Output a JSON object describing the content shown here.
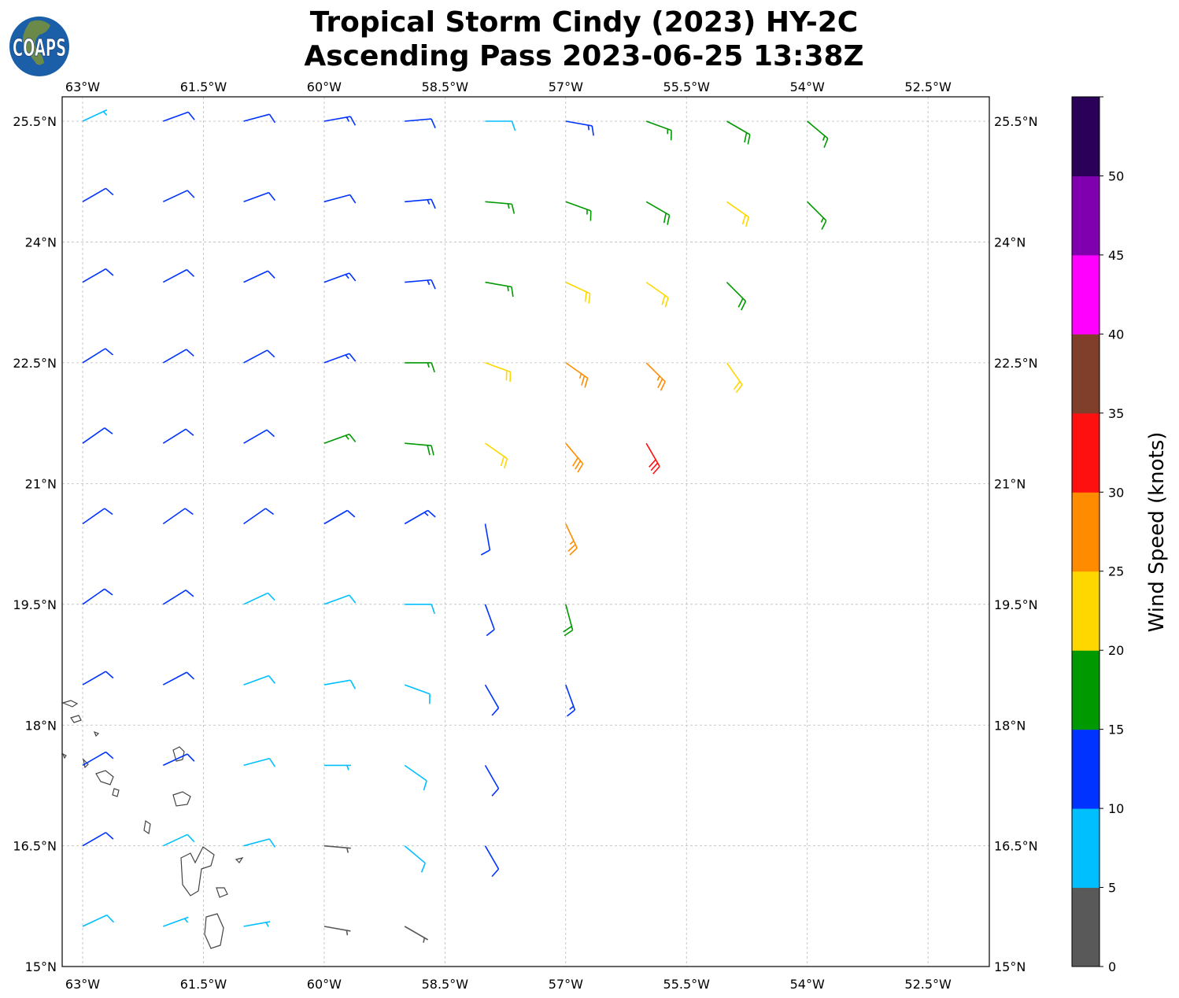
{
  "title_line1": "Tropical Storm Cindy (2023) HY-2C",
  "title_line2": "Ascending Pass 2023-06-25 13:38Z",
  "logo_text": "COAPS",
  "chart_data": {
    "type": "wind-barb-map",
    "lon_ticks": [
      {
        "v": -63,
        "label": "63°W"
      },
      {
        "v": -61.5,
        "label": "61.5°W"
      },
      {
        "v": -60,
        "label": "60°W"
      },
      {
        "v": -58.5,
        "label": "58.5°W"
      },
      {
        "v": -57,
        "label": "57°W"
      },
      {
        "v": -55.5,
        "label": "55.5°W"
      },
      {
        "v": -54,
        "label": "54°W"
      },
      {
        "v": -52.5,
        "label": "52.5°W"
      }
    ],
    "lat_ticks": [
      {
        "v": 25.5,
        "label": "25.5°N"
      },
      {
        "v": 24,
        "label": "24°N"
      },
      {
        "v": 22.5,
        "label": "22.5°N"
      },
      {
        "v": 21,
        "label": "21°N"
      },
      {
        "v": 19.5,
        "label": "19.5°N"
      },
      {
        "v": 18,
        "label": "18°N"
      },
      {
        "v": 16.5,
        "label": "16.5°N"
      },
      {
        "v": 15,
        "label": "15°N"
      }
    ],
    "extent": {
      "lon": [
        -63.25,
        -51.74
      ],
      "lat": [
        15,
        25.8
      ]
    },
    "grid": true,
    "colorbar": {
      "label": "Wind Speed (knots)",
      "ticks": [
        "0",
        "5",
        "10",
        "15",
        "20",
        "25",
        "30",
        "35",
        "40",
        "45",
        "50"
      ],
      "bins": [
        0,
        5,
        10,
        15,
        20,
        25,
        30,
        35,
        40,
        45,
        50,
        55
      ],
      "colors": [
        "#595959",
        "#00bfff",
        "#0033ff",
        "#009900",
        "#ffd700",
        "#ff8c00",
        "#ff1010",
        "#803f2a",
        "#ff00ff",
        "#8000b0",
        "#2b0059"
      ]
    },
    "barb_fields": [
      "lon",
      "lat",
      "speed_kt",
      "direction_from_deg"
    ],
    "barbs": [
      [
        -63,
        25.5,
        7,
        65
      ],
      [
        -62,
        25.5,
        11,
        70
      ],
      [
        -61,
        25.5,
        12,
        75
      ],
      [
        -60,
        25.5,
        14,
        80
      ],
      [
        -59,
        25.5,
        12,
        85
      ],
      [
        -58,
        25.5,
        8,
        90
      ],
      [
        -57,
        25.5,
        13,
        100
      ],
      [
        -56,
        25.5,
        17,
        110
      ],
      [
        -55,
        25.5,
        19,
        120
      ],
      [
        -54,
        25.5,
        15,
        130
      ],
      [
        -63,
        24.5,
        12,
        60
      ],
      [
        -62,
        24.5,
        11,
        65
      ],
      [
        -61,
        24.5,
        12,
        70
      ],
      [
        -60,
        24.5,
        12,
        75
      ],
      [
        -59,
        24.5,
        14,
        85
      ],
      [
        -58,
        24.5,
        15,
        95
      ],
      [
        -57,
        24.5,
        17,
        110
      ],
      [
        -56,
        24.5,
        18,
        120
      ],
      [
        -55,
        24.5,
        21,
        125
      ],
      [
        -54,
        24.5,
        16,
        135
      ],
      [
        -63,
        23.5,
        12,
        60
      ],
      [
        -62,
        23.5,
        12,
        62
      ],
      [
        -61,
        23.5,
        12,
        65
      ],
      [
        -60,
        23.5,
        13,
        70
      ],
      [
        -59,
        23.5,
        14,
        85
      ],
      [
        -58,
        23.5,
        17,
        100
      ],
      [
        -57,
        23.5,
        20,
        115
      ],
      [
        -56,
        23.5,
        22,
        125
      ],
      [
        -55,
        23.5,
        18,
        135
      ],
      [
        -63,
        22.5,
        12,
        58
      ],
      [
        -62,
        22.5,
        12,
        60
      ],
      [
        -61,
        22.5,
        12,
        62
      ],
      [
        -60,
        22.5,
        14,
        70
      ],
      [
        -59,
        22.5,
        17,
        90
      ],
      [
        -58,
        22.5,
        20,
        110
      ],
      [
        -57,
        22.5,
        26,
        125
      ],
      [
        -56,
        22.5,
        27,
        135
      ],
      [
        -55,
        22.5,
        22,
        145
      ],
      [
        -63,
        21.5,
        12,
        55
      ],
      [
        -62,
        21.5,
        12,
        58
      ],
      [
        -61,
        21.5,
        12,
        60
      ],
      [
        -60,
        21.5,
        17,
        70
      ],
      [
        -59,
        21.5,
        18,
        95
      ],
      [
        -58,
        21.5,
        22,
        125
      ],
      [
        -57,
        21.5,
        28,
        140
      ],
      [
        -56,
        21.5,
        30,
        150
      ],
      [
        -63,
        20.5,
        12,
        55
      ],
      [
        -62,
        20.5,
        12,
        55
      ],
      [
        -61,
        20.5,
        12,
        55
      ],
      [
        -60,
        20.5,
        12,
        60
      ],
      [
        -59,
        20.5,
        13,
        60
      ],
      [
        -58,
        20.5,
        12,
        170
      ],
      [
        -57,
        20.5,
        26,
        155
      ],
      [
        -63,
        19.5,
        12,
        55
      ],
      [
        -62,
        19.5,
        12,
        58
      ],
      [
        -61,
        19.5,
        8,
        65
      ],
      [
        -60,
        19.5,
        8,
        70
      ],
      [
        -59,
        19.5,
        8,
        90
      ],
      [
        -58,
        19.5,
        12,
        160
      ],
      [
        -57,
        19.5,
        18,
        165
      ],
      [
        -63,
        18.5,
        12,
        60
      ],
      [
        -62,
        18.5,
        12,
        62
      ],
      [
        -61,
        18.5,
        8,
        70
      ],
      [
        -60,
        18.5,
        8,
        80
      ],
      [
        -59,
        18.5,
        8,
        110
      ],
      [
        -58,
        18.5,
        12,
        150
      ],
      [
        -57,
        18.5,
        14,
        160
      ],
      [
        -63,
        17.5,
        12,
        60
      ],
      [
        -62,
        17.5,
        12,
        65
      ],
      [
        -61,
        17.5,
        8,
        75
      ],
      [
        -60,
        17.5,
        7,
        90
      ],
      [
        -59,
        17.5,
        8,
        125
      ],
      [
        -58,
        17.5,
        12,
        150
      ],
      [
        -63,
        16.5,
        12,
        60
      ],
      [
        -62,
        16.5,
        9,
        65
      ],
      [
        -61,
        16.5,
        8,
        75
      ],
      [
        -60,
        16.5,
        4,
        95
      ],
      [
        -59,
        16.5,
        8,
        130
      ],
      [
        -58,
        16.5,
        12,
        150
      ],
      [
        -63,
        15.5,
        8,
        65
      ],
      [
        -62,
        15.5,
        7,
        70
      ],
      [
        -61,
        15.5,
        7,
        80
      ],
      [
        -60,
        15.5,
        4,
        100
      ],
      [
        -59,
        15.5,
        4,
        120
      ]
    ]
  }
}
